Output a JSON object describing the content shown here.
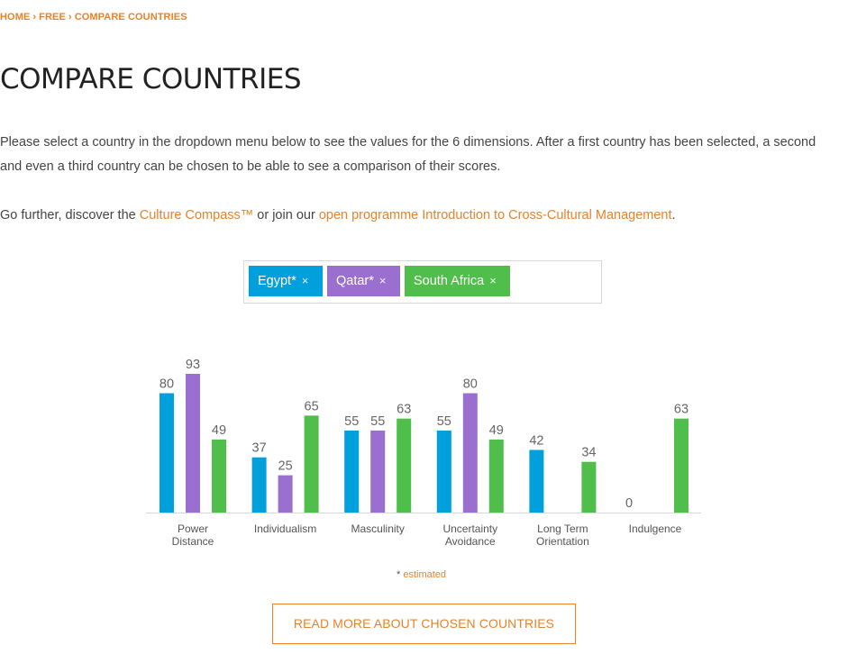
{
  "breadcrumb": {
    "items": [
      "HOME",
      "FREE",
      "COMPARE COUNTRIES"
    ],
    "separator": "›"
  },
  "page": {
    "title": "COMPARE COUNTRIES",
    "intro": "Please select a country in the dropdown menu below to see the values for the 6 dimensions. After a first country has been selected, a second and even a third country can be chosen to be able to see a comparison of their scores.",
    "further_prefix": "Go further, discover the ",
    "further_link1": "Culture Compass™",
    "further_middle": " or join our ",
    "further_link2": "open programme Introduction to Cross-Cultural Management",
    "further_suffix": "."
  },
  "selector": {
    "tags": [
      {
        "label": "Egypt*",
        "remove": "×",
        "color": "#00a0dc"
      },
      {
        "label": "Qatar*",
        "remove": "×",
        "color": "#9b6fcf"
      },
      {
        "label": "South Africa",
        "remove": "×",
        "color": "#50be4b"
      }
    ]
  },
  "chart_data": {
    "type": "bar",
    "categories": [
      "Power\nDistance",
      "Individualism",
      "Masculinity",
      "Uncertainty\nAvoidance",
      "Long Term\nOrientation",
      "Indulgence"
    ],
    "series": [
      {
        "name": "Egypt*",
        "color": "#00a0dc",
        "values": [
          80,
          37,
          55,
          55,
          42,
          0
        ]
      },
      {
        "name": "Qatar*",
        "color": "#9b6fcf",
        "values": [
          93,
          25,
          55,
          80,
          null,
          null
        ]
      },
      {
        "name": "South Africa",
        "color": "#50be4b",
        "values": [
          49,
          65,
          63,
          49,
          34,
          63
        ]
      }
    ],
    "ylim": [
      0,
      100
    ],
    "grid": false,
    "data_labels": true
  },
  "footnote": {
    "star": "* ",
    "text": "estimated"
  },
  "cta": {
    "label": "READ MORE ABOUT CHOSEN COUNTRIES"
  }
}
